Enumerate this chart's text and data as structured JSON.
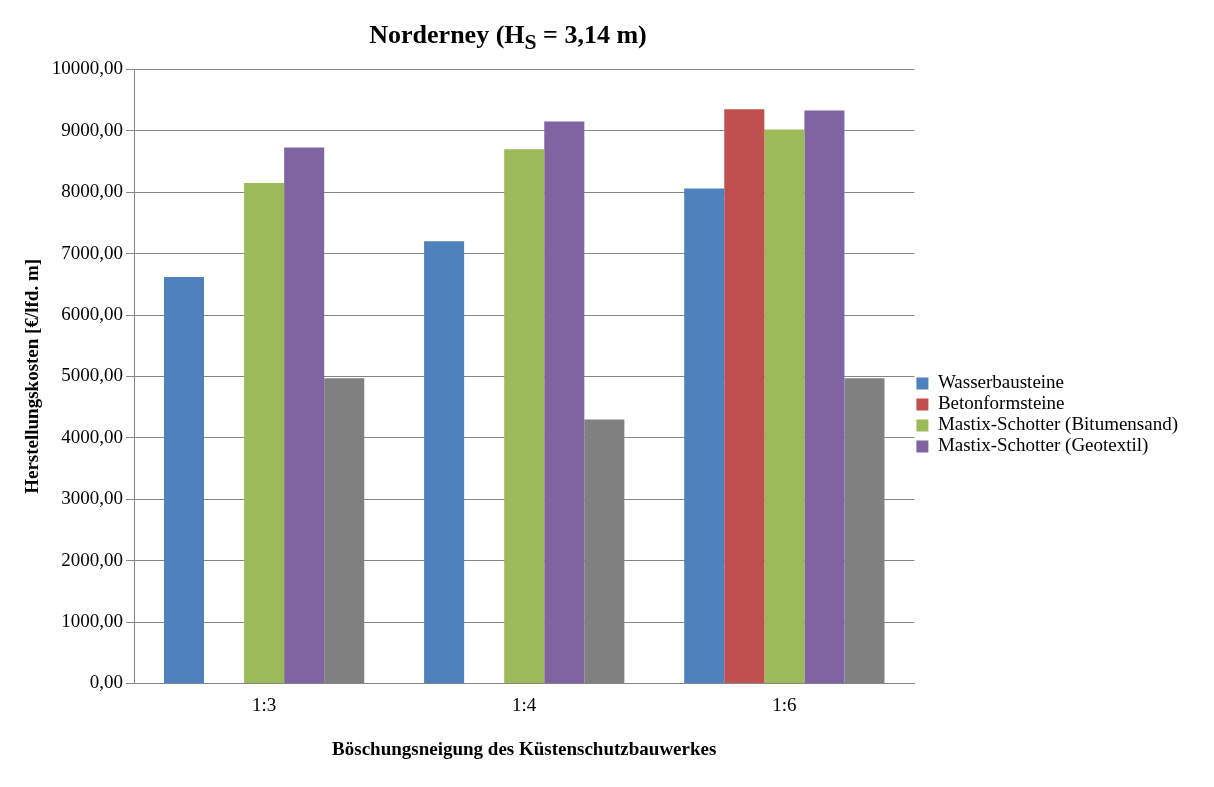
{
  "chart_data": {
    "type": "bar",
    "title": "Norderney (H$_{S}$ = 3,14 m)",
    "xlabel": "Böschungsneigung des Küstenschutzbauwerkes",
    "ylabel": "Herstellungskosten [€/lfd. m]",
    "categories": [
      "1:3",
      "1:4",
      "1:6"
    ],
    "series": [
      {
        "name": "Wasserbausteine",
        "color": "#4f81bd",
        "values": [
          6620,
          7200,
          8060
        ]
      },
      {
        "name": "Betonformsteine",
        "color": "#c0504d",
        "values": [
          null,
          null,
          9350
        ]
      },
      {
        "name": "Mastix-Schotter (Bitumensand)",
        "color": "#9bbb59",
        "values": [
          8150,
          8700,
          9020
        ]
      },
      {
        "name": "Mastix-Schotter (Geotextil)",
        "color": "#8064a2",
        "values": [
          8730,
          9150,
          9330
        ]
      },
      {
        "color": "#808080",
        "values": [
          4970,
          4300,
          4970
        ]
      }
    ],
    "ylim": [
      0,
      10000
    ],
    "yticks": [
      {
        "value": 0,
        "label": "0,00"
      },
      {
        "value": 1000,
        "label": "1000,00"
      },
      {
        "value": 2000,
        "label": "2000,00"
      },
      {
        "value": 3000,
        "label": "3000,00"
      },
      {
        "value": 4000,
        "label": "4000,00"
      },
      {
        "value": 5000,
        "label": "5000,00"
      },
      {
        "value": 6000,
        "label": "6000,00"
      },
      {
        "value": 7000,
        "label": "7000,00"
      },
      {
        "value": 8000,
        "label": "8000,00"
      },
      {
        "value": 9000,
        "label": "9000,00"
      },
      {
        "value": 10000,
        "label": "10000,00"
      }
    ],
    "grid": "y",
    "legend": "right"
  }
}
